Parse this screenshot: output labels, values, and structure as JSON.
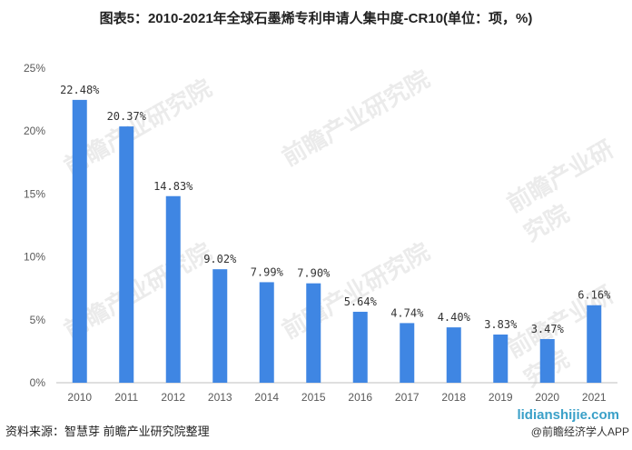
{
  "title": "图表5：2010-2021年全球石墨烯专利申请人集中度-CR10(单位：项，%)",
  "source": "资料来源：智慧芽 前瞻产业研究院整理",
  "watermark_site": "lidianshijie.com",
  "watermark_app": "@前瞻经济学人APP",
  "watermark_brand": "前瞻产业研究院",
  "chart_data": {
    "type": "bar",
    "title": "图表5：2010-2021年全球石墨烯专利申请人集中度-CR10(单位：项，%)",
    "categories": [
      "2010",
      "2011",
      "2012",
      "2013",
      "2014",
      "2015",
      "2016",
      "2017",
      "2018",
      "2019",
      "2020",
      "2021"
    ],
    "values": [
      22.48,
      20.37,
      14.83,
      9.02,
      7.99,
      7.9,
      5.64,
      4.74,
      4.4,
      3.83,
      3.47,
      6.16
    ],
    "data_labels": [
      "22.48%",
      "20.37%",
      "14.83%",
      "9.02%",
      "7.99%",
      "7.90%",
      "5.64%",
      "4.74%",
      "4.40%",
      "3.83%",
      "3.47%",
      "6.16%"
    ],
    "ylim": [
      0,
      25
    ],
    "yticks": [
      "0%",
      "5%",
      "10%",
      "15%",
      "20%",
      "25%"
    ],
    "grid": false,
    "bar_color": "#3f86e3"
  }
}
